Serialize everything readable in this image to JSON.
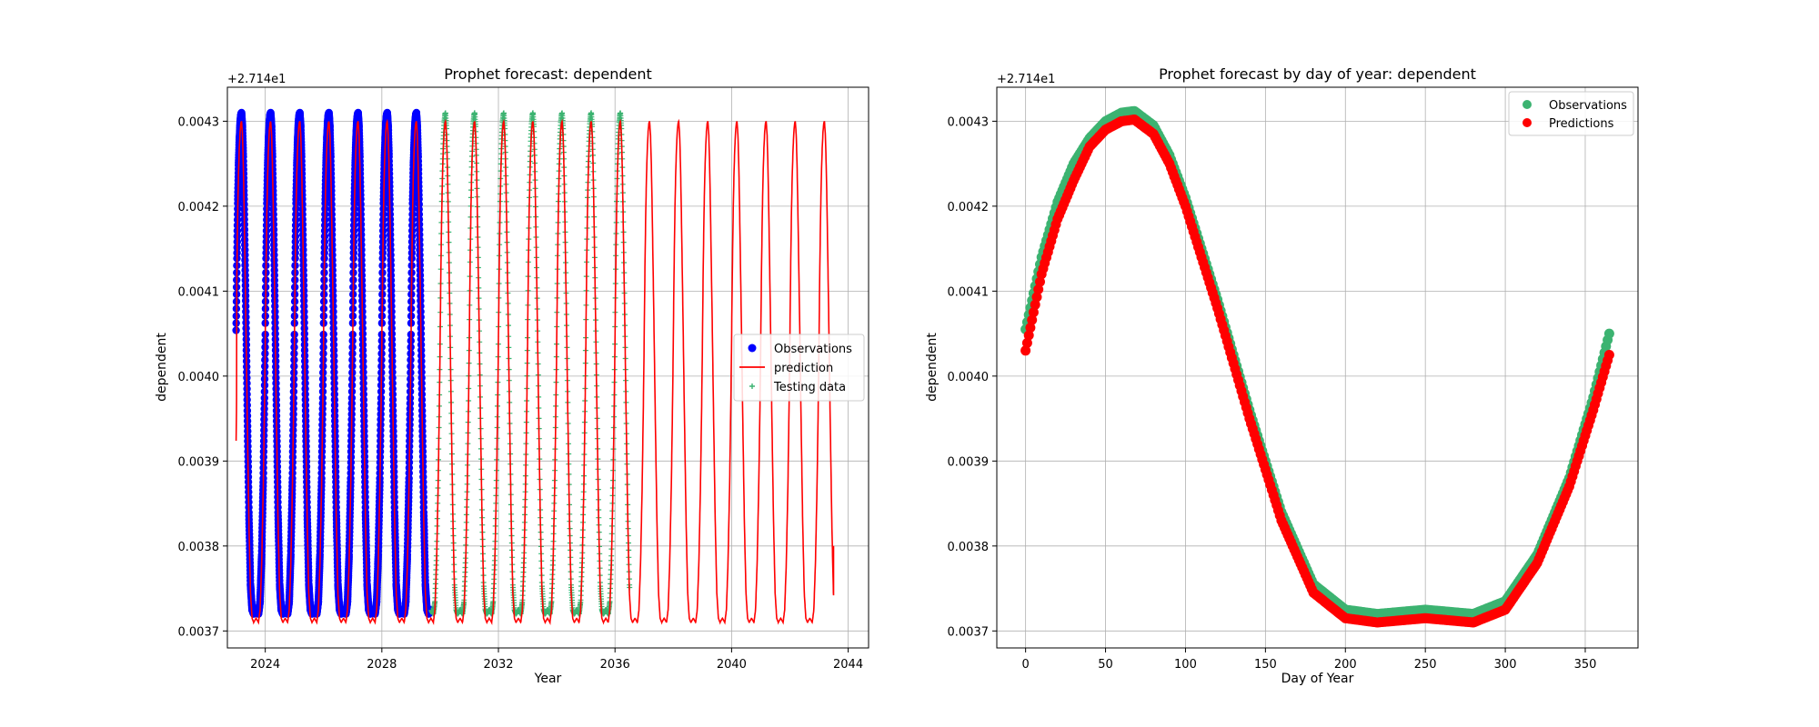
{
  "chart_data": [
    {
      "type": "line",
      "title": "Prophet forecast: dependent",
      "xlabel": "Year",
      "ylabel": "dependent",
      "y_offset_label": "+2.714e1",
      "xlim": [
        2022.7,
        2044.7
      ],
      "ylim": [
        0.00368,
        0.00434
      ],
      "x_ticks": [
        2024,
        2028,
        2032,
        2036,
        2040,
        2044
      ],
      "y_ticks": [
        0.0037,
        0.0038,
        0.0039,
        0.004,
        0.0041,
        0.0042,
        0.0043
      ],
      "grid": true,
      "legend_position": "center-right",
      "series": [
        {
          "name": "Observations",
          "style": "scatter",
          "color": "#0000ff",
          "x_range": [
            2023.0,
            2029.7
          ],
          "min": 0.00372,
          "max": 0.00431,
          "period_years": 1,
          "peak_day_of_year": 68,
          "trough_day_of_year": 225
        },
        {
          "name": "prediction",
          "style": "line",
          "color": "#ff0000",
          "x_range": [
            2023.0,
            2043.5
          ],
          "min": 0.00371,
          "max": 0.0043,
          "period_years": 1,
          "end_value": 0.0038
        },
        {
          "name": "Testing data",
          "style": "plus",
          "color": "#3cb371",
          "x_range": [
            2029.7,
            2036.5
          ],
          "min": 0.00372,
          "max": 0.00431,
          "period_years": 1
        }
      ]
    },
    {
      "type": "scatter",
      "title": "Prophet forecast by day of year: dependent",
      "xlabel": "Day of Year",
      "ylabel": "dependent",
      "y_offset_label": "+2.714e1",
      "xlim": [
        -18,
        383
      ],
      "ylim": [
        0.00368,
        0.00434
      ],
      "x_ticks": [
        0,
        50,
        100,
        150,
        200,
        250,
        300,
        350
      ],
      "y_ticks": [
        0.0037,
        0.0038,
        0.0039,
        0.004,
        0.0041,
        0.0042,
        0.0043
      ],
      "grid": true,
      "legend_position": "top-right",
      "series": [
        {
          "name": "Observations",
          "color": "#3cb371",
          "x": [
            0,
            10,
            20,
            30,
            40,
            50,
            60,
            68,
            80,
            90,
            100,
            120,
            140,
            160,
            180,
            200,
            220,
            250,
            280,
            300,
            320,
            340,
            355,
            365
          ],
          "y": [
            0.004055,
            0.00414,
            0.004205,
            0.00425,
            0.00428,
            0.0043,
            0.00431,
            0.004312,
            0.004295,
            0.00426,
            0.00421,
            0.00409,
            0.00396,
            0.00384,
            0.003755,
            0.003725,
            0.00372,
            0.003725,
            0.00372,
            0.003735,
            0.00379,
            0.00388,
            0.003975,
            0.00405
          ]
        },
        {
          "name": "Predictions",
          "color": "#ff0000",
          "x": [
            0,
            10,
            20,
            30,
            40,
            50,
            60,
            68,
            80,
            90,
            100,
            120,
            140,
            160,
            180,
            200,
            220,
            250,
            280,
            300,
            320,
            340,
            355,
            365
          ],
          "y": [
            0.00403,
            0.00412,
            0.004185,
            0.00423,
            0.00427,
            0.00429,
            0.0043,
            0.004302,
            0.004285,
            0.00425,
            0.0042,
            0.00408,
            0.00395,
            0.00383,
            0.003745,
            0.003715,
            0.00371,
            0.003715,
            0.00371,
            0.003725,
            0.00378,
            0.00387,
            0.00396,
            0.004025
          ]
        }
      ]
    }
  ]
}
